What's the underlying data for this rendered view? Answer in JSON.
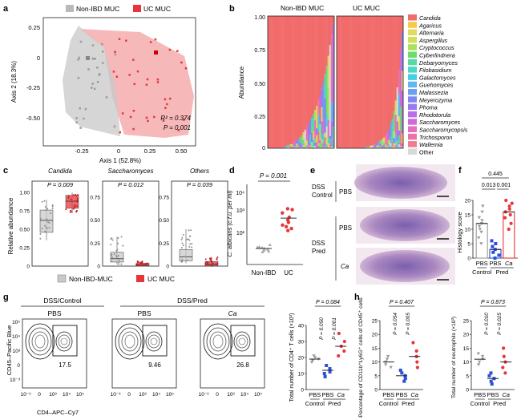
{
  "panels": {
    "a": {
      "letter": "a",
      "legend": [
        "Non-IBD MUC",
        "UC MUC"
      ],
      "xlabel": "Axis 1 (52.8%)",
      "ylabel": "Axis 2 (18.3%)",
      "xticks": [
        "-0.25",
        "0",
        "0.25",
        "0.50"
      ],
      "yticks": [
        "0.25",
        "0",
        "-0.25",
        "-0.50"
      ],
      "r2": "R² = 0.374",
      "p": "P = 0.001"
    },
    "b": {
      "letter": "b",
      "groups": [
        "Non-IBD MUC",
        "UC MUC"
      ],
      "ylabel": "Abundance",
      "yticks": [
        "1.00",
        "0.75",
        "0.50",
        "0.25",
        "0"
      ],
      "legend": [
        "Candida",
        "Agaricus",
        "Alternaria",
        "Aspergillus",
        "Cryptococcus",
        "Cyberlindnera",
        "Debaryomyces",
        "Filobasidium",
        "Galactomyces",
        "Guehomyces",
        "Malassezia",
        "Meyerozyma",
        "Phoma",
        "Rhodotorula",
        "Saccharomyces",
        "Saccharomycopsis",
        "Trichosporon",
        "Wallemia",
        "Other"
      ]
    },
    "c": {
      "letter": "c",
      "ylabel": "Relative abundance",
      "subpanels": [
        {
          "title": "Candida",
          "p": "P = 0.009",
          "yticks": [
            "1.00",
            "0.75",
            "0.50",
            "0.25",
            "0"
          ]
        },
        {
          "title": "Saccharomyces",
          "p": "P = 0.012",
          "yticks": [
            "0.75",
            "0.50",
            "0.25",
            "0"
          ]
        },
        {
          "title": "Others",
          "p": "P = 0.039",
          "yticks": [
            "0.75",
            "0.50",
            "0.25",
            "0"
          ]
        }
      ],
      "legend": [
        "Non-IBD-MUC",
        "UC MUC"
      ]
    },
    "d": {
      "letter": "d",
      "p": "P = 0.001",
      "ylabel": "C. albicans (c.f.u. per ml)",
      "yticks": [
        "10⁴",
        "10³",
        "10²"
      ],
      "xticks": [
        "Non-IBD",
        "UC"
      ]
    },
    "e": {
      "letter": "e",
      "labels": [
        "DSS",
        "Control",
        "PBS",
        "PBS",
        "DSS",
        "Pred",
        "Ca"
      ]
    },
    "f": {
      "letter": "f",
      "ylabel": "Histology score",
      "yticks": [
        "20",
        "15",
        "10",
        "5",
        "0"
      ],
      "pvals": [
        "0.445",
        "0.013",
        "0.001"
      ],
      "xticks": [
        "PBS",
        "PBS",
        "Ca"
      ],
      "groups": [
        "Control",
        "Pred"
      ]
    },
    "g": {
      "letter": "g",
      "headers": [
        "DSS/Control",
        "DSS/Pred"
      ],
      "conditions": [
        "PBS",
        "PBS",
        "Ca"
      ],
      "gate_values": [
        "17.5",
        "9.46",
        "26.8"
      ],
      "ylabel": "CD45–Pacific Blue",
      "xlabel": "CD4–APC–Cy7",
      "axis_ticks": [
        "10⁵",
        "10⁴",
        "10³",
        "0",
        "10⁻³"
      ],
      "x_axis_ticks": [
        "10⁻³",
        "0",
        "10³",
        "10⁴",
        "10⁵"
      ],
      "summary": {
        "ylabel": "Total number of CD4⁺ T cells (×10³)",
        "yticks": [
          "40",
          "30",
          "20",
          "10",
          "0"
        ],
        "pvals": [
          "P = 0.084",
          "P = 0.050",
          "P = 0.001"
        ],
        "xticks": [
          "PBS",
          "PBS",
          "Ca"
        ],
        "groups": [
          "Control",
          "Pred"
        ]
      }
    },
    "h": {
      "letter": "h",
      "left": {
        "ylabel": "Percentage of CD11b⁺Ly6G⁺ cells of CD45⁺ cells",
        "yticks": [
          "25",
          "20",
          "15",
          "10",
          "5",
          "0"
        ],
        "pvals": [
          "P = 0.407",
          "P = 0.054",
          "P = 0.005"
        ],
        "xticks": [
          "PBS",
          "PBS",
          "Ca"
        ],
        "groups": [
          "Control",
          "Pred"
        ]
      },
      "right": {
        "ylabel": "Total number of neutrophils (×10³)",
        "yticks": [
          "25",
          "20",
          "15",
          "10",
          "5",
          "0"
        ],
        "pvals": [
          "P = 0.873",
          "P = 0.010",
          "P = 0.025"
        ],
        "xticks": [
          "PBS",
          "PBS",
          "Ca"
        ],
        "groups": [
          "Control",
          "Pred"
        ]
      }
    }
  },
  "colors": {
    "nonibd": "#b9b9b9",
    "uc": "#e8353a",
    "pbs_ctrl": "#9a9a9a",
    "pbs_pred": "#2b4fd6",
    "ca": "#e8353a"
  },
  "chart_data": [
    {
      "panel": "b",
      "type": "bar",
      "groups": [
        "Non-IBD MUC",
        "UC MUC"
      ],
      "ylim": [
        0,
        1.0
      ],
      "series_names": [
        "Candida",
        "Agaricus",
        "Alternaria",
        "Aspergillus",
        "Cryptococcus",
        "Cyberlindnera",
        "Debaryomyces",
        "Filobasidium",
        "Galactomyces",
        "Guehomyces",
        "Malassezia",
        "Meyerozyma",
        "Phoma",
        "Rhodotorula",
        "Saccharomyces",
        "Saccharomycopsis",
        "Trichosporon",
        "Wallemia",
        "Other"
      ],
      "series_colors": [
        "#f26b6b",
        "#f7c94b",
        "#e3d95a",
        "#cfe05a",
        "#a8e25c",
        "#6fdb6a",
        "#57d9a0",
        "#4ed6c7",
        "#44cfe4",
        "#5fb6f0",
        "#6c9ef2",
        "#7f86f2",
        "#9a78ef",
        "#b76ee8",
        "#d16ad6",
        "#e46fc0",
        "#ea72a8",
        "#ee7c92",
        "#d8d8d8"
      ],
      "candida_fraction_nonibd": [
        1.0,
        1.0,
        1.0,
        1.0,
        1.0,
        1.0,
        1.0,
        1.0,
        1.0,
        0.99,
        0.99,
        0.98,
        0.98,
        0.97,
        0.97,
        0.96,
        0.95,
        0.94,
        0.93,
        0.92,
        0.9,
        0.88,
        0.86,
        0.84,
        0.82,
        0.8,
        0.77,
        0.74,
        0.71,
        0.68,
        0.64,
        0.6,
        0.55,
        0.5,
        0.44,
        0.38,
        0.3,
        0.22,
        0.14,
        0.06
      ],
      "candida_fraction_uc": [
        1.0,
        1.0,
        1.0,
        1.0,
        1.0,
        1.0,
        1.0,
        1.0,
        1.0,
        1.0,
        1.0,
        1.0,
        1.0,
        1.0,
        1.0,
        1.0,
        1.0,
        0.99,
        0.99,
        0.99,
        0.98,
        0.98,
        0.97,
        0.97,
        0.96,
        0.95,
        0.94,
        0.93,
        0.92,
        0.9,
        0.88,
        0.86,
        0.82,
        0.78,
        0.72,
        0.64,
        0.54,
        0.4,
        0.26,
        0.12
      ]
    },
    {
      "panel": "d",
      "type": "scatter",
      "categories": [
        "Non-IBD",
        "UC"
      ],
      "scale": "log",
      "ylim": [
        100,
        10000
      ],
      "series": [
        {
          "values": [
            125,
            130,
            140,
            150,
            160,
            170,
            175,
            180,
            210
          ]
        },
        {
          "values": [
            600,
            700,
            800,
            900,
            1100,
            1300,
            1600,
            2200,
            2800,
            3000
          ]
        }
      ]
    },
    {
      "panel": "f",
      "type": "bar",
      "categories": [
        "PBS",
        "PBS",
        "Ca"
      ],
      "ylim": [
        0,
        20
      ],
      "values": [
        12,
        3,
        16
      ],
      "points": [
        [
          5,
          7,
          9,
          10,
          11,
          12,
          13,
          14,
          16,
          18
        ],
        [
          0,
          1,
          2,
          3,
          4,
          5,
          6
        ],
        [
          10,
          12,
          14,
          15,
          16,
          17,
          18,
          19,
          20
        ]
      ]
    },
    {
      "panel": "g",
      "type": "scatter",
      "categories": [
        "PBS",
        "PBS",
        "Ca"
      ],
      "ylim": [
        0,
        40
      ],
      "means": [
        19,
        12,
        27
      ],
      "points": [
        [
          17,
          18,
          19,
          20,
          21
        ],
        [
          8,
          10,
          11,
          13,
          15
        ],
        [
          21,
          24,
          27,
          30,
          35
        ]
      ]
    },
    {
      "panel": "h-left",
      "type": "scatter",
      "categories": [
        "PBS",
        "PBS",
        "Ca"
      ],
      "ylim": [
        0,
        25
      ],
      "means": [
        10,
        5,
        12
      ],
      "points": [
        [
          8,
          9,
          10,
          11,
          12
        ],
        [
          3,
          4,
          5,
          6,
          7
        ],
        [
          8,
          10,
          12,
          14,
          17
        ]
      ]
    },
    {
      "panel": "h-right",
      "type": "scatter",
      "categories": [
        "PBS",
        "PBS",
        "Ca"
      ],
      "ylim": [
        0,
        25
      ],
      "means": [
        11,
        4,
        10
      ],
      "points": [
        [
          9,
          10,
          11,
          12,
          13
        ],
        [
          2,
          3,
          4,
          5,
          6
        ],
        [
          6,
          8,
          10,
          12,
          15
        ]
      ]
    }
  ]
}
